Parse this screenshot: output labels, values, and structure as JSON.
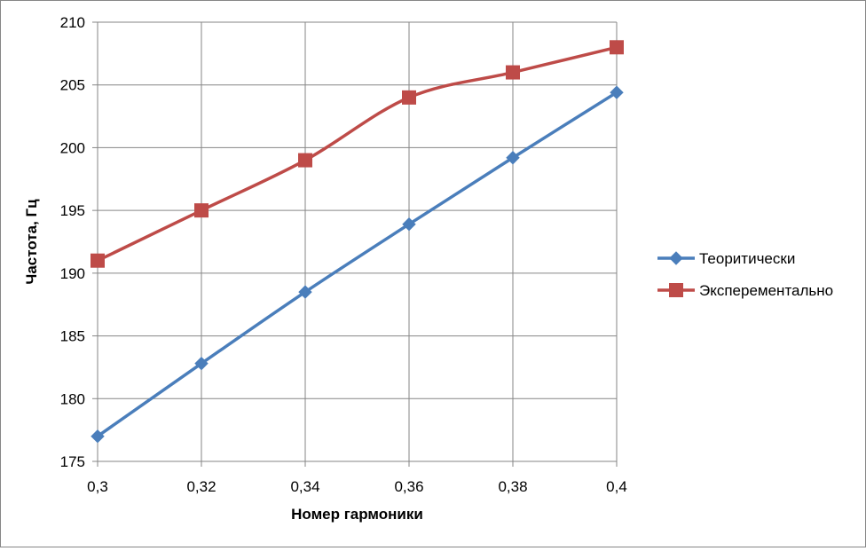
{
  "chart_data": {
    "type": "line",
    "title": "",
    "xlabel": "Номер гармоники",
    "ylabel": "Частота, Гц",
    "x": [
      0.3,
      0.32,
      0.34,
      0.36,
      0.38,
      0.4
    ],
    "x_tick_labels": [
      "0,3",
      "0,32",
      "0,34",
      "0,36",
      "0,38",
      "0,4"
    ],
    "y_ticks": [
      175,
      180,
      185,
      190,
      195,
      200,
      205,
      210
    ],
    "y_tick_labels": [
      "175",
      "180",
      "185",
      "190",
      "195",
      "200",
      "205",
      "210"
    ],
    "ylim": [
      175,
      210
    ],
    "xlim": [
      0.3,
      0.4
    ],
    "grid": true,
    "legend_position": "right",
    "series": [
      {
        "name": "Теоритически",
        "color": "#4a7ebb",
        "marker": "diamond",
        "values": [
          177.0,
          182.8,
          188.5,
          193.9,
          199.2,
          204.4
        ]
      },
      {
        "name": "Эксперементально",
        "color": "#be4b48",
        "marker": "square",
        "values": [
          191,
          195,
          199,
          204,
          206,
          208
        ]
      }
    ]
  }
}
